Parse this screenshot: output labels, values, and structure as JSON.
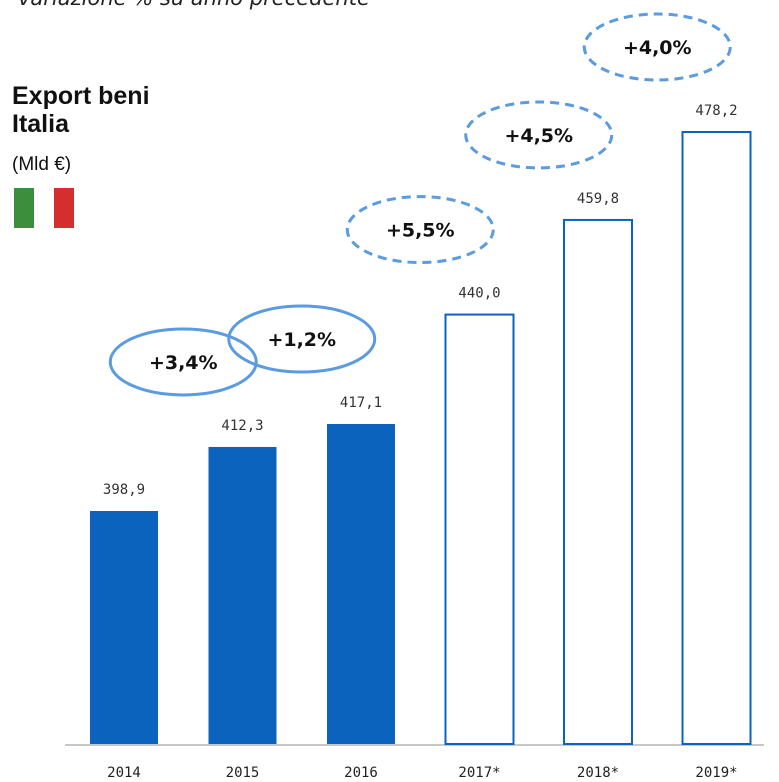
{
  "header": {
    "subtitle": "variazione % su anno precedente",
    "title_line1": "Export beni",
    "title_line2": "Italia",
    "unit": "(Mld €)",
    "flag_icon": "italy-flag-icon"
  },
  "colors": {
    "bar_fill": "#0b63bd",
    "bar_outline": "#0b63bd",
    "ellipse_stroke": "#5b9be0",
    "flag_green": "#3d8e3c",
    "flag_white": "#ffffff",
    "flag_red": "#d32f2f"
  },
  "chart_data": {
    "type": "bar",
    "title": "",
    "xlabel": "",
    "ylabel": "",
    "categories": [
      "2014",
      "2015",
      "2016",
      "2017*",
      "2018*",
      "2019*"
    ],
    "values": [
      398.9,
      412.3,
      417.1,
      440.0,
      459.8,
      478.2
    ],
    "value_labels": [
      "398,9",
      "412,3",
      "417,1",
      "440,0",
      "459,8",
      "478,2"
    ],
    "forecast": [
      false,
      false,
      false,
      true,
      true,
      true
    ],
    "annotations": [
      {
        "between": [
          "2014",
          "2015"
        ],
        "text": "+3,4%",
        "style": "solid"
      },
      {
        "between": [
          "2015",
          "2016"
        ],
        "text": "+1,2%",
        "style": "solid"
      },
      {
        "between": [
          "2016",
          "2017*"
        ],
        "text": "+5,5%",
        "style": "dashed"
      },
      {
        "between": [
          "2017*",
          "2018*"
        ],
        "text": "+4,5%",
        "style": "dashed"
      },
      {
        "between": [
          "2018*",
          "2019*"
        ],
        "text": "+4,0%",
        "style": "dashed"
      }
    ],
    "grid": false,
    "legend": "none"
  }
}
